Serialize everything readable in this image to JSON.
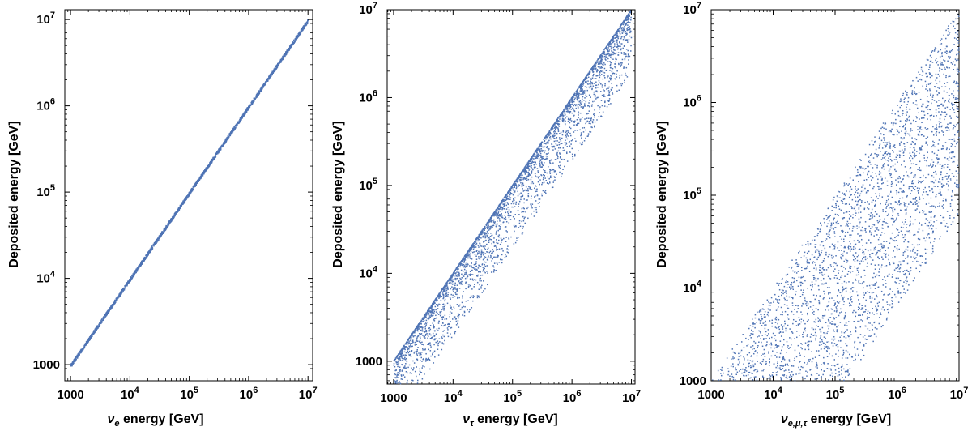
{
  "chart_data": [
    {
      "type": "scatter",
      "panel": "left",
      "xlabel_symbol": "ν",
      "xlabel_sub": "e",
      "xlabel_rest": " energy [GeV]",
      "ylabel": "Deposited energy [GeV]",
      "xscale": "log",
      "yscale": "log",
      "xlim": [
        800,
        12000000
      ],
      "ylim": [
        650,
        13000000
      ],
      "xticks": [
        {
          "value": 1000,
          "label": "1000",
          "exp": ""
        },
        {
          "value": 10000,
          "label": "10",
          "exp": "4"
        },
        {
          "value": 100000,
          "label": "10",
          "exp": "5"
        },
        {
          "value": 1000000,
          "label": "10",
          "exp": "6"
        },
        {
          "value": 10000000,
          "label": "10",
          "exp": "7"
        }
      ],
      "yticks": [
        {
          "value": 1000,
          "label": "1000",
          "exp": ""
        },
        {
          "value": 10000,
          "label": "10",
          "exp": "4"
        },
        {
          "value": 100000,
          "label": "10",
          "exp": "5"
        },
        {
          "value": 1000000,
          "label": "10",
          "exp": "6"
        },
        {
          "value": 10000000,
          "label": "10",
          "exp": "7"
        }
      ],
      "distribution": {
        "description": "deposited energy approximately equal to neutrino energy",
        "x_range": [
          1000,
          10000000
        ],
        "ratio_log10_min": -0.04,
        "ratio_log10_max": 0.0,
        "n_points": 2500
      },
      "marker_color": "#4f74b5"
    },
    {
      "type": "scatter",
      "panel": "middle",
      "xlabel_symbol": "ν",
      "xlabel_sub": "τ",
      "xlabel_rest": " energy [GeV]",
      "ylabel": "Deposited energy [GeV]",
      "xscale": "log",
      "yscale": "log",
      "xlim": [
        780,
        11500000
      ],
      "ylim": [
        550,
        10000000
      ],
      "xticks": [
        {
          "value": 1000,
          "label": "1000",
          "exp": ""
        },
        {
          "value": 10000,
          "label": "10",
          "exp": "4"
        },
        {
          "value": 100000,
          "label": "10",
          "exp": "5"
        },
        {
          "value": 1000000,
          "label": "10",
          "exp": "6"
        },
        {
          "value": 10000000,
          "label": "10",
          "exp": "7"
        }
      ],
      "yticks": [
        {
          "value": 1000,
          "label": "1000",
          "exp": ""
        },
        {
          "value": 10000,
          "label": "10",
          "exp": "4"
        },
        {
          "value": 100000,
          "label": "10",
          "exp": "5"
        },
        {
          "value": 1000000,
          "label": "10",
          "exp": "6"
        },
        {
          "value": 10000000,
          "label": "10",
          "exp": "7"
        }
      ],
      "distribution": {
        "description": "deposited energy mostly near neutrino energy with a tail to lower values",
        "x_range": [
          1000,
          10000000
        ],
        "ratio_log10_min": -0.45,
        "ratio_log10_max": 0.0,
        "n_points": 4000
      },
      "marker_color": "#4f74b5"
    },
    {
      "type": "scatter",
      "panel": "right",
      "xlabel_symbol": "ν",
      "xlabel_sub": "e,μ,τ",
      "xlabel_rest": " energy [GeV]",
      "ylabel": "Deposited energy [GeV]",
      "xscale": "log",
      "yscale": "log",
      "xlim": [
        1000,
        10000000
      ],
      "ylim": [
        1000,
        10000000
      ],
      "xticks": [
        {
          "value": 1000,
          "label": "1000",
          "exp": ""
        },
        {
          "value": 10000,
          "label": "10",
          "exp": "4"
        },
        {
          "value": 100000,
          "label": "10",
          "exp": "5"
        },
        {
          "value": 1000000,
          "label": "10",
          "exp": "6"
        },
        {
          "value": 10000000,
          "label": "10",
          "exp": "7"
        }
      ],
      "yticks": [
        {
          "value": 1000,
          "label": "1000",
          "exp": ""
        },
        {
          "value": 10000,
          "label": "10",
          "exp": "4"
        },
        {
          "value": 100000,
          "label": "10",
          "exp": "5"
        },
        {
          "value": 1000000,
          "label": "10",
          "exp": "6"
        },
        {
          "value": 10000000,
          "label": "10",
          "exp": "7"
        }
      ],
      "distribution": {
        "description": "deposited energy broadly spread between about 1% and 100% of neutrino energy",
        "x_range": [
          1000,
          10000000
        ],
        "ratio_log10_min": -2.2,
        "ratio_log10_max": 0.0,
        "n_points": 4000
      },
      "marker_color": "#4f74b5"
    }
  ]
}
